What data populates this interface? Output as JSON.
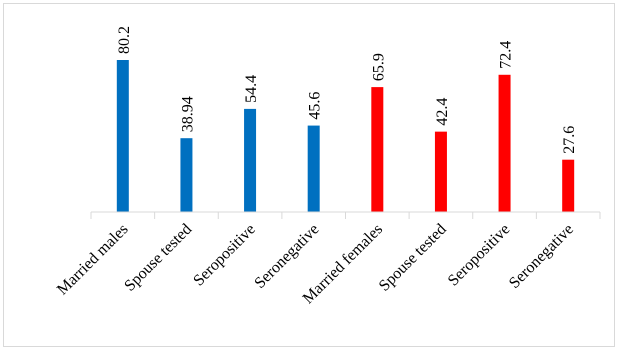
{
  "chart_data": {
    "type": "bar",
    "categories": [
      "Married males",
      "Spouse tested",
      "Seropositive",
      "Seronegative",
      "Married females",
      "Spouse tested",
      "Seropositive",
      "Seronegative"
    ],
    "values": [
      80.2,
      38.94,
      54.4,
      45.6,
      65.9,
      42.4,
      72.4,
      27.6
    ],
    "bar_colors": [
      "#0070c0",
      "#0070c0",
      "#0070c0",
      "#0070c0",
      "#ff0000",
      "#ff0000",
      "#ff0000",
      "#ff0000"
    ],
    "title": "",
    "xlabel": "",
    "ylabel": "",
    "ylim": [
      0,
      80.2
    ],
    "grid": false,
    "legend": "none",
    "colors": {
      "axis": "#d9d9d9",
      "border": "#d9d9d9",
      "text": "#000000"
    }
  }
}
